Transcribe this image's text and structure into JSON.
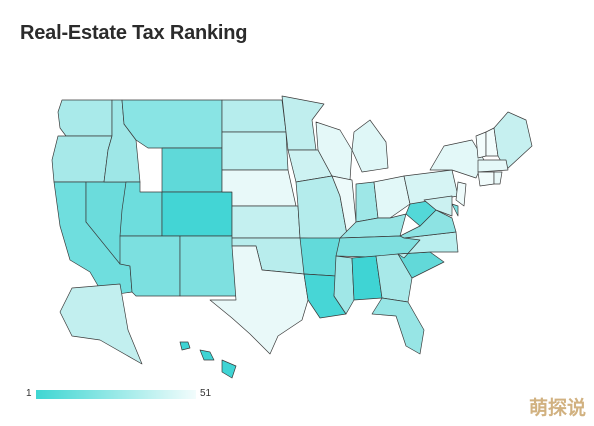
{
  "title": "Real-Estate Tax Ranking",
  "legend": {
    "min": "1",
    "max": "51",
    "color_low_rank": "#3fd6d2",
    "color_high_rank": "#f2fcfc"
  },
  "watermark": "萌探说",
  "states": [
    {
      "name": "WA",
      "color": "#a9eaea"
    },
    {
      "name": "OR",
      "color": "#a7e9e9"
    },
    {
      "name": "CA",
      "color": "#6fdede"
    },
    {
      "name": "NV",
      "color": "#6bdcdc"
    },
    {
      "name": "ID",
      "color": "#9ee7e7"
    },
    {
      "name": "MT",
      "color": "#89e4e4"
    },
    {
      "name": "WY",
      "color": "#5fd9d9"
    },
    {
      "name": "UT",
      "color": "#6ddddd"
    },
    {
      "name": "CO",
      "color": "#43d5d5"
    },
    {
      "name": "AZ",
      "color": "#7ce0e0"
    },
    {
      "name": "NM",
      "color": "#7ee0e0"
    },
    {
      "name": "ND",
      "color": "#b6eded"
    },
    {
      "name": "SD",
      "color": "#bff0f0"
    },
    {
      "name": "NE",
      "color": "#e8f9f9"
    },
    {
      "name": "KS",
      "color": "#c4f0f0"
    },
    {
      "name": "OK",
      "color": "#b8eded"
    },
    {
      "name": "TX",
      "color": "#e9f9f9"
    },
    {
      "name": "MN",
      "color": "#c0eeee"
    },
    {
      "name": "IA",
      "color": "#cdf2f2"
    },
    {
      "name": "MO",
      "color": "#b4ecec"
    },
    {
      "name": "AR",
      "color": "#62dada"
    },
    {
      "name": "LA",
      "color": "#47d6d6"
    },
    {
      "name": "WI",
      "color": "#e4f8f8"
    },
    {
      "name": "IL",
      "color": "#edfafa"
    },
    {
      "name": "MI",
      "color": "#dff7f7"
    },
    {
      "name": "IN",
      "color": "#9ee7e7"
    },
    {
      "name": "OH",
      "color": "#e2f8f8"
    },
    {
      "name": "KY",
      "color": "#98e6e6"
    },
    {
      "name": "TN",
      "color": "#7fe0e0"
    },
    {
      "name": "MS",
      "color": "#a0e7e7"
    },
    {
      "name": "AL",
      "color": "#3fd4d4"
    },
    {
      "name": "GA",
      "color": "#a8e9e9"
    },
    {
      "name": "FL",
      "color": "#97e5e5"
    },
    {
      "name": "SC",
      "color": "#62d9d9"
    },
    {
      "name": "NC",
      "color": "#b9eeee"
    },
    {
      "name": "VA",
      "color": "#8de3e3"
    },
    {
      "name": "WV",
      "color": "#53d8d8"
    },
    {
      "name": "PA",
      "color": "#d6f4f4"
    },
    {
      "name": "NY",
      "color": "#e3f8f8"
    },
    {
      "name": "NJ",
      "color": "#eefbfb"
    },
    {
      "name": "DE",
      "color": "#7fe0e0"
    },
    {
      "name": "MD",
      "color": "#cbf1f1"
    },
    {
      "name": "VT",
      "color": "#f3fcfc"
    },
    {
      "name": "NH",
      "color": "#f2fcfc"
    },
    {
      "name": "ME",
      "color": "#c6f0f0"
    },
    {
      "name": "MA",
      "color": "#e5f8f8"
    },
    {
      "name": "CT",
      "color": "#f0fbfb"
    },
    {
      "name": "RI",
      "color": "#e9f9f9"
    },
    {
      "name": "AK",
      "color": "#c2efef"
    },
    {
      "name": "HI",
      "color": "#3fd4d4"
    }
  ]
}
